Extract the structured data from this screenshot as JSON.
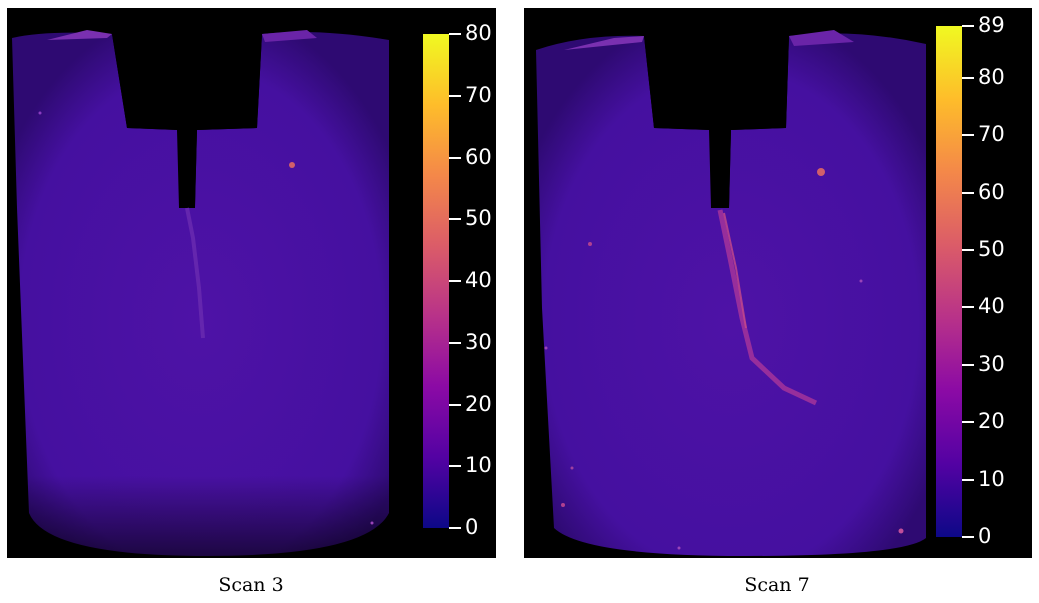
{
  "panels": [
    {
      "caption": "Scan 3",
      "colorbar": {
        "min": 0,
        "max": 80,
        "ticks": [
          "0",
          "10",
          "20",
          "30",
          "40",
          "50",
          "60",
          "70",
          "80"
        ],
        "colormap": "plasma"
      }
    },
    {
      "caption": "Scan 7",
      "colorbar": {
        "min": 0,
        "max": 89,
        "ticks": [
          "0",
          "10",
          "20",
          "30",
          "40",
          "50",
          "60",
          "70",
          "80",
          "89"
        ],
        "colormap": "plasma"
      }
    }
  ],
  "colors": {
    "background": "#000000",
    "specimen": "#4a10a0",
    "specimen_edge": "#3a0c7e",
    "crack": "#c03a8a",
    "plasma_stops": [
      "#0d0887",
      "#5302a3",
      "#8b0aa5",
      "#b83289",
      "#db5c68",
      "#f48849",
      "#febd2a",
      "#f0f921"
    ]
  }
}
